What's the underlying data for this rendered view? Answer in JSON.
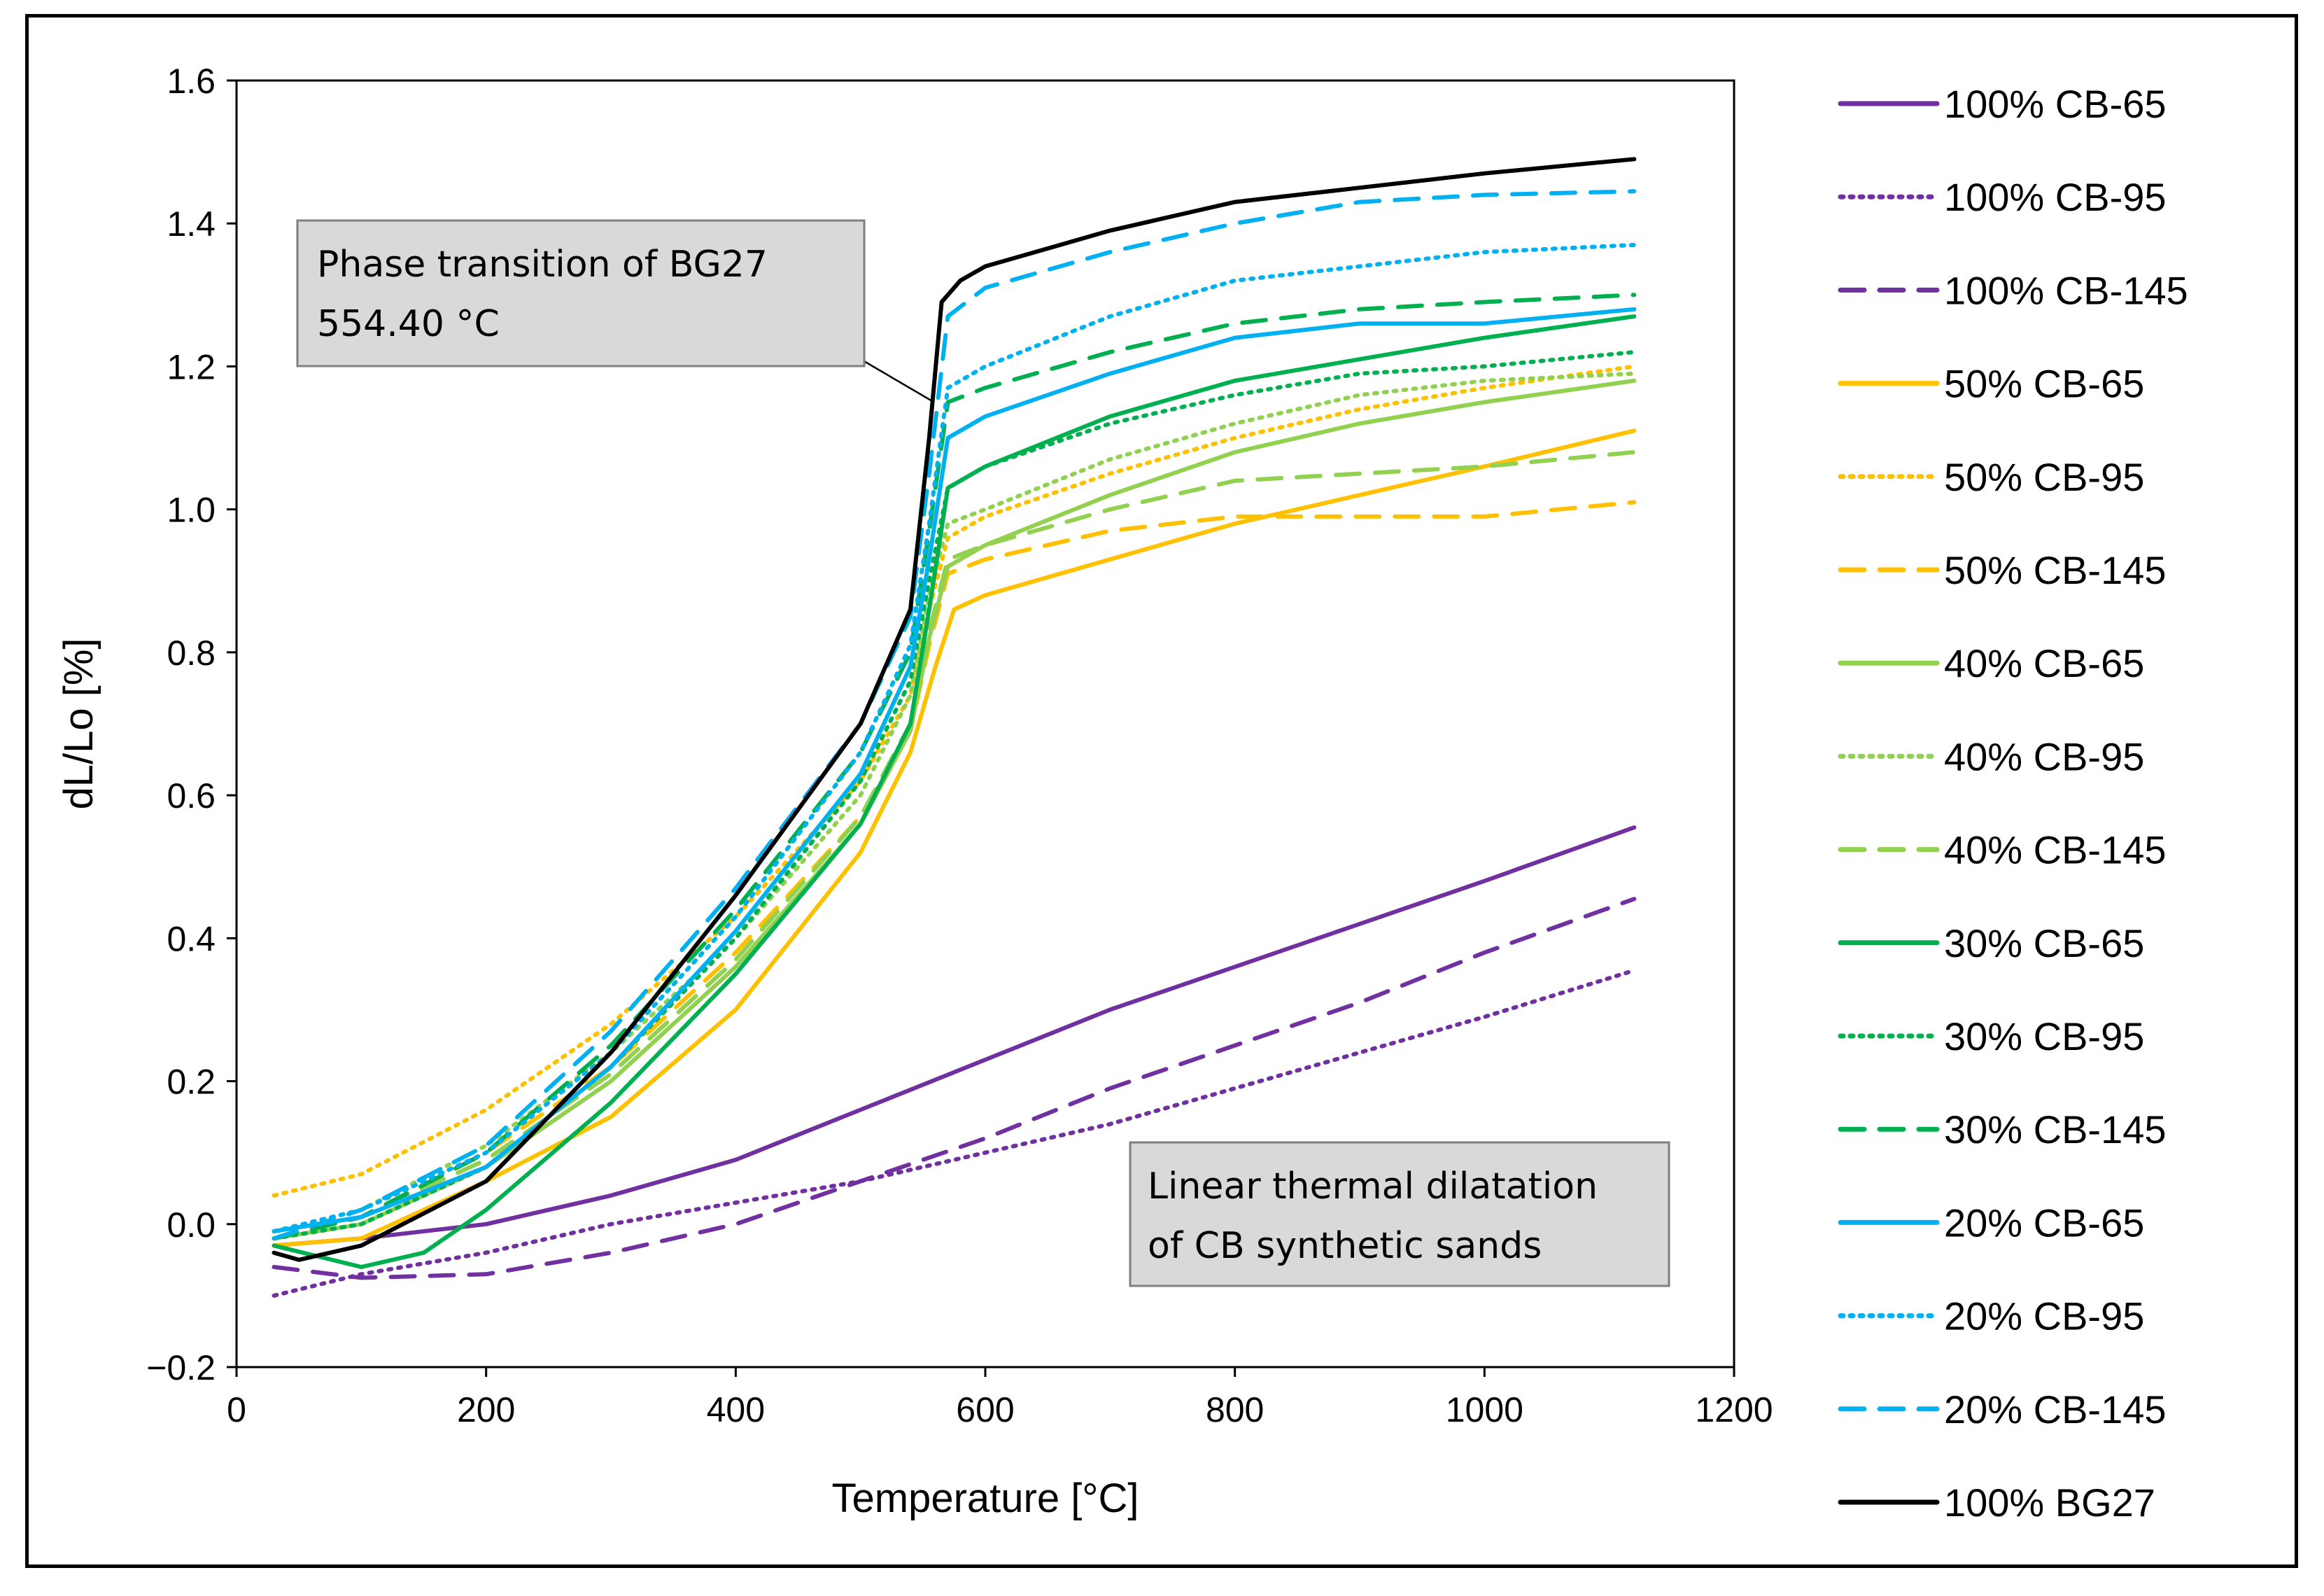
{
  "chart_data": {
    "type": "line",
    "title": "",
    "xlabel": "Temperature [°C]",
    "ylabel": "dL/Lo [%]",
    "xlim": [
      0,
      1200
    ],
    "ylim": [
      -0.2,
      1.6
    ],
    "xticks": [
      0,
      200,
      400,
      600,
      800,
      1000,
      1200
    ],
    "yticks": [
      -0.2,
      0.0,
      0.2,
      0.4,
      0.6,
      0.8,
      1.0,
      1.2,
      1.4,
      1.6
    ],
    "xtick_labels": [
      "0",
      "200",
      "400",
      "600",
      "800",
      "1000",
      "1200"
    ],
    "ytick_labels": [
      "−0.2",
      "0.0",
      "0.2",
      "0.4",
      "0.6",
      "0.8",
      "1.0",
      "1.2",
      "1.4",
      "1.6"
    ],
    "grid": false,
    "legend_position": "right",
    "annotations": [
      {
        "lines": [
          "Phase transition of BG27",
          "554.40 °C"
        ],
        "target": {
          "x": 554.4,
          "y": 1.15
        }
      },
      {
        "lines": [
          "Linear thermal dilatation",
          "of CB synthetic sands"
        ]
      }
    ],
    "series": [
      {
        "name": "100% CB-65",
        "color": "#7030A0",
        "style": "solid",
        "x": [
          30,
          100,
          200,
          300,
          400,
          500,
          600,
          700,
          800,
          900,
          1000,
          1120
        ],
        "y": [
          -0.03,
          -0.02,
          0.0,
          0.04,
          0.09,
          0.16,
          0.23,
          0.3,
          0.36,
          0.42,
          0.48,
          0.555
        ]
      },
      {
        "name": "100% CB-95",
        "color": "#7030A0",
        "style": "dotted",
        "x": [
          30,
          100,
          200,
          300,
          400,
          500,
          600,
          700,
          800,
          900,
          1000,
          1120
        ],
        "y": [
          -0.1,
          -0.07,
          -0.04,
          0.0,
          0.03,
          0.06,
          0.1,
          0.14,
          0.19,
          0.24,
          0.29,
          0.355
        ]
      },
      {
        "name": "100% CB-145",
        "color": "#7030A0",
        "style": "dashed",
        "x": [
          30,
          100,
          200,
          300,
          400,
          500,
          600,
          700,
          800,
          900,
          1000,
          1120
        ],
        "y": [
          -0.06,
          -0.075,
          -0.07,
          -0.04,
          0.0,
          0.06,
          0.12,
          0.19,
          0.25,
          0.31,
          0.38,
          0.455
        ]
      },
      {
        "name": "50% CB-65",
        "color": "#FFC000",
        "style": "solid",
        "x": [
          30,
          100,
          200,
          300,
          400,
          500,
          540,
          560,
          575,
          600,
          700,
          800,
          900,
          1000,
          1120
        ],
        "y": [
          -0.03,
          -0.02,
          0.06,
          0.15,
          0.3,
          0.52,
          0.66,
          0.78,
          0.86,
          0.88,
          0.93,
          0.98,
          1.02,
          1.06,
          1.11
        ]
      },
      {
        "name": "50% CB-95",
        "color": "#FFC000",
        "style": "dotted",
        "x": [
          30,
          100,
          200,
          300,
          400,
          500,
          540,
          555,
          570,
          600,
          700,
          800,
          900,
          1000,
          1120
        ],
        "y": [
          0.04,
          0.07,
          0.16,
          0.28,
          0.43,
          0.62,
          0.74,
          0.86,
          0.96,
          0.99,
          1.05,
          1.1,
          1.14,
          1.17,
          1.2
        ]
      },
      {
        "name": "50% CB-145",
        "color": "#FFC000",
        "style": "dashed",
        "x": [
          30,
          100,
          200,
          300,
          400,
          500,
          540,
          555,
          570,
          600,
          700,
          800,
          900,
          1000,
          1120
        ],
        "y": [
          -0.02,
          0.01,
          0.1,
          0.22,
          0.38,
          0.57,
          0.69,
          0.81,
          0.91,
          0.93,
          0.97,
          0.99,
          0.99,
          0.99,
          1.01
        ]
      },
      {
        "name": "40% CB-65",
        "color": "#92D050",
        "style": "solid",
        "x": [
          30,
          100,
          200,
          300,
          400,
          500,
          540,
          555,
          570,
          600,
          700,
          800,
          900,
          1000,
          1120
        ],
        "y": [
          -0.02,
          0.0,
          0.08,
          0.2,
          0.36,
          0.56,
          0.69,
          0.82,
          0.92,
          0.95,
          1.02,
          1.08,
          1.12,
          1.15,
          1.18
        ]
      },
      {
        "name": "40% CB-95",
        "color": "#92D050",
        "style": "dotted",
        "x": [
          30,
          100,
          200,
          300,
          400,
          500,
          540,
          555,
          570,
          600,
          700,
          800,
          900,
          1000,
          1120
        ],
        "y": [
          -0.01,
          0.02,
          0.11,
          0.24,
          0.4,
          0.6,
          0.74,
          0.88,
          0.98,
          1.0,
          1.07,
          1.12,
          1.16,
          1.18,
          1.19
        ]
      },
      {
        "name": "40% CB-145",
        "color": "#92D050",
        "style": "dashed",
        "x": [
          30,
          100,
          200,
          300,
          400,
          500,
          540,
          555,
          570,
          600,
          700,
          800,
          900,
          1000,
          1120
        ],
        "y": [
          -0.02,
          0.01,
          0.09,
          0.21,
          0.37,
          0.57,
          0.7,
          0.83,
          0.93,
          0.95,
          1.0,
          1.04,
          1.05,
          1.06,
          1.08
        ]
      },
      {
        "name": "30% CB-65",
        "color": "#00B050",
        "style": "solid",
        "x": [
          30,
          100,
          150,
          200,
          300,
          400,
          500,
          540,
          555,
          570,
          600,
          700,
          800,
          900,
          1000,
          1120
        ],
        "y": [
          -0.03,
          -0.06,
          -0.04,
          0.02,
          0.17,
          0.35,
          0.56,
          0.7,
          0.86,
          1.03,
          1.06,
          1.13,
          1.18,
          1.21,
          1.24,
          1.27
        ]
      },
      {
        "name": "30% CB-95",
        "color": "#00B050",
        "style": "dotted",
        "x": [
          30,
          100,
          200,
          300,
          400,
          500,
          540,
          555,
          570,
          600,
          700,
          800,
          900,
          1000,
          1120
        ],
        "y": [
          -0.02,
          0.0,
          0.08,
          0.22,
          0.4,
          0.62,
          0.76,
          0.9,
          1.03,
          1.06,
          1.12,
          1.16,
          1.19,
          1.2,
          1.22
        ]
      },
      {
        "name": "30% CB-145",
        "color": "#00B050",
        "style": "dashed",
        "x": [
          30,
          100,
          200,
          300,
          400,
          500,
          540,
          555,
          570,
          600,
          700,
          800,
          900,
          1000,
          1120
        ],
        "y": [
          -0.02,
          0.01,
          0.1,
          0.25,
          0.44,
          0.66,
          0.8,
          0.97,
          1.15,
          1.17,
          1.22,
          1.26,
          1.28,
          1.29,
          1.3
        ]
      },
      {
        "name": "20% CB-65",
        "color": "#00B0F0",
        "style": "solid",
        "x": [
          30,
          100,
          200,
          300,
          400,
          500,
          540,
          555,
          570,
          600,
          700,
          800,
          900,
          1000,
          1120
        ],
        "y": [
          -0.01,
          0.01,
          0.08,
          0.22,
          0.41,
          0.63,
          0.78,
          0.93,
          1.1,
          1.13,
          1.19,
          1.24,
          1.26,
          1.26,
          1.28
        ]
      },
      {
        "name": "20% CB-95",
        "color": "#00B0F0",
        "style": "dotted",
        "x": [
          30,
          100,
          200,
          300,
          400,
          500,
          540,
          555,
          570,
          600,
          700,
          800,
          900,
          1000,
          1120
        ],
        "y": [
          -0.01,
          0.02,
          0.1,
          0.24,
          0.43,
          0.66,
          0.81,
          0.98,
          1.17,
          1.2,
          1.27,
          1.32,
          1.34,
          1.36,
          1.37
        ]
      },
      {
        "name": "20% CB-145",
        "color": "#00B0F0",
        "style": "dashed",
        "x": [
          30,
          100,
          200,
          300,
          400,
          500,
          540,
          555,
          570,
          600,
          700,
          800,
          900,
          1000,
          1120
        ],
        "y": [
          -0.02,
          0.02,
          0.11,
          0.27,
          0.47,
          0.7,
          0.85,
          1.05,
          1.27,
          1.31,
          1.36,
          1.4,
          1.43,
          1.44,
          1.445
        ]
      },
      {
        "name": "100% BG27",
        "color": "#000000",
        "style": "solid",
        "x": [
          30,
          50,
          100,
          200,
          300,
          400,
          500,
          540,
          555,
          565,
          580,
          600,
          700,
          800,
          900,
          1000,
          1120
        ],
        "y": [
          -0.04,
          -0.05,
          -0.03,
          0.06,
          0.24,
          0.46,
          0.7,
          0.86,
          1.1,
          1.29,
          1.32,
          1.34,
          1.39,
          1.43,
          1.45,
          1.47,
          1.49
        ]
      }
    ]
  }
}
